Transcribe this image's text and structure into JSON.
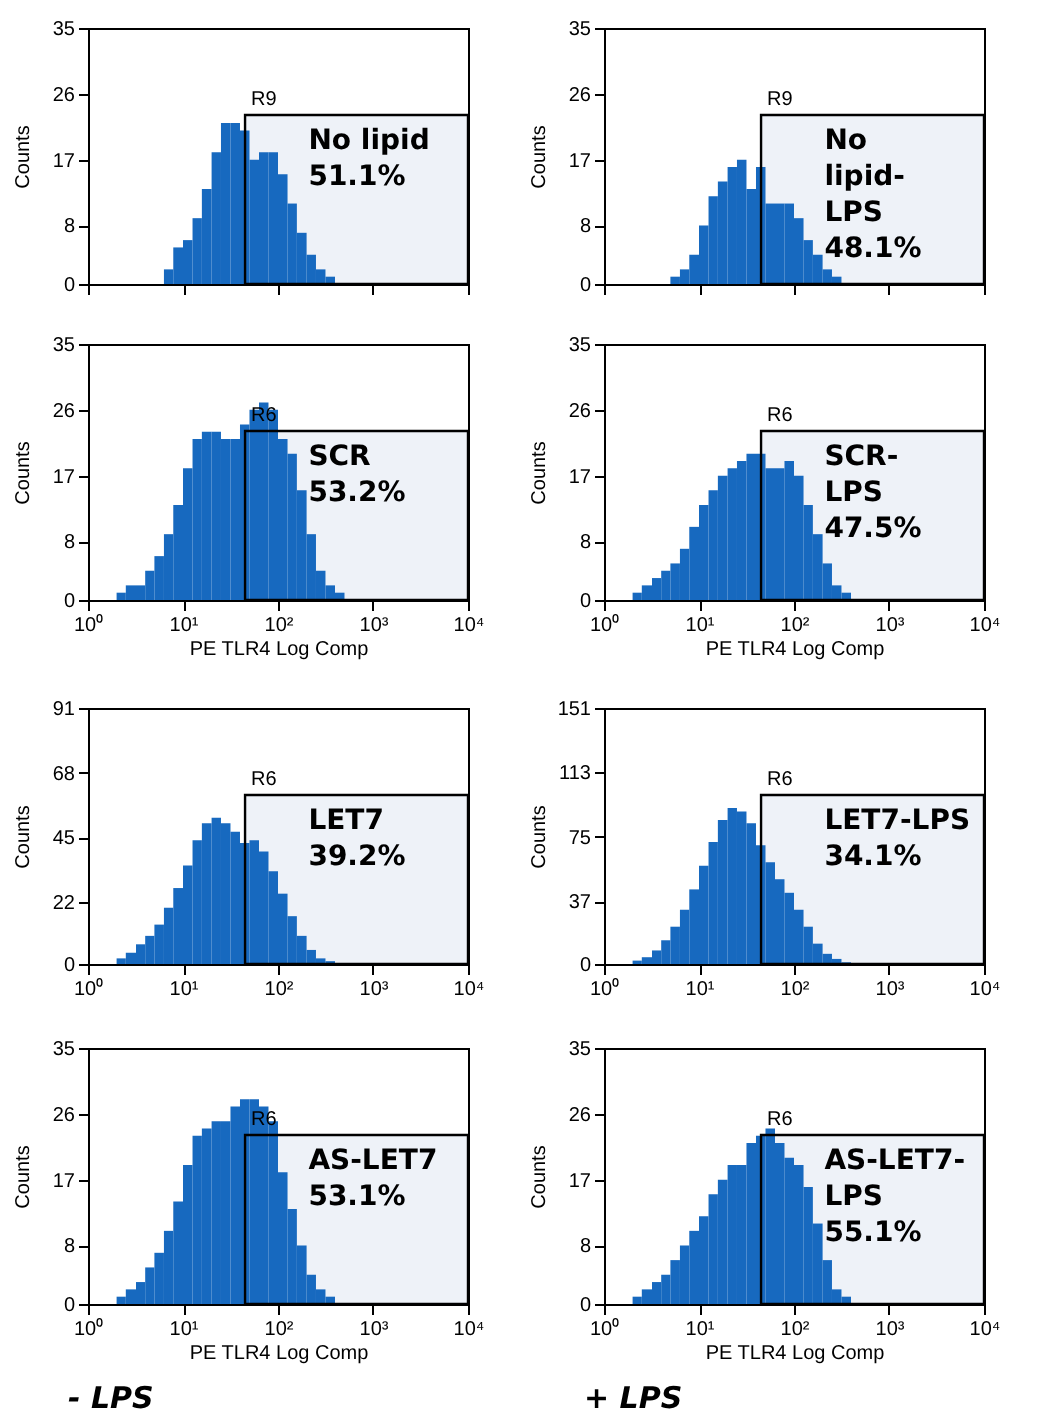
{
  "chart_data": [
    {
      "type": "histogram",
      "ylabel": "Counts",
      "color": "#1769bf",
      "xlim": [
        1,
        10000
      ],
      "ylim": [
        0,
        35
      ],
      "log": "x",
      "grid": false,
      "tick_labels": "y",
      "xticks": [
        {
          "value": 1,
          "label": null
        },
        {
          "value": 10,
          "label": null
        },
        {
          "value": 100,
          "label": null
        },
        {
          "value": 1000,
          "label": null
        },
        {
          "value": 10000,
          "label": null
        }
      ],
      "yticks": [
        0,
        8,
        17,
        26,
        35
      ],
      "bins": [
        6.3,
        7.9,
        10,
        12.6,
        15.8,
        20,
        25.1,
        31.6,
        39.8,
        50.1,
        63.1,
        79.4,
        100,
        126,
        158,
        200,
        251,
        316,
        398
      ],
      "values": [
        2,
        5,
        6,
        9,
        13,
        18,
        22,
        22,
        21,
        17,
        18,
        18,
        15,
        11,
        7,
        4,
        2,
        1
      ],
      "bands": [
        {
          "axis": "x",
          "from": 45,
          "to": 10000,
          "label": "R9"
        }
      ],
      "annotations": [
        "No lipid\n51.1%"
      ]
    },
    {
      "type": "histogram",
      "ylabel": "Counts",
      "color": "#1769bf",
      "xlim": [
        1,
        10000
      ],
      "ylim": [
        0,
        35
      ],
      "log": "x",
      "grid": false,
      "tick_labels": "y",
      "xticks": [
        {
          "value": 1,
          "label": null
        },
        {
          "value": 10,
          "label": null
        },
        {
          "value": 100,
          "label": null
        },
        {
          "value": 1000,
          "label": null
        },
        {
          "value": 10000,
          "label": null
        }
      ],
      "yticks": [
        0,
        8,
        17,
        26,
        35
      ],
      "bins": [
        5,
        6.3,
        7.9,
        10,
        12.6,
        15.8,
        20,
        25.1,
        31.6,
        39.8,
        50.1,
        63.1,
        79.4,
        100,
        126,
        158,
        200,
        251,
        316
      ],
      "values": [
        1,
        2,
        4,
        8,
        12,
        14,
        16,
        17,
        13,
        16,
        11,
        11,
        11,
        9,
        6,
        4,
        2,
        1
      ],
      "bands": [
        {
          "axis": "x",
          "from": 45,
          "to": 10000,
          "label": "R9"
        }
      ],
      "annotations": [
        "No\nlipid-\nLPS\n48.1%"
      ]
    },
    {
      "type": "histogram",
      "xlabel": "PE TLR4 Log Comp",
      "ylabel": "Counts",
      "color": "#1769bf",
      "xlim": [
        1,
        10000
      ],
      "ylim": [
        0,
        35
      ],
      "log": "x",
      "grid": false,
      "xticks": [
        {
          "value": 1,
          "label": "10⁰"
        },
        {
          "value": 10,
          "label": "10¹"
        },
        {
          "value": 100,
          "label": "10²"
        },
        {
          "value": 1000,
          "label": "10³"
        },
        {
          "value": 10000,
          "label": "10⁴"
        }
      ],
      "yticks": [
        0,
        8,
        17,
        26,
        35
      ],
      "bins": [
        2,
        2.5,
        3.2,
        4,
        5,
        6.3,
        7.9,
        10,
        12.6,
        15.8,
        20,
        25.1,
        31.6,
        39.8,
        50.1,
        63.1,
        79.4,
        100,
        126,
        158,
        200,
        251,
        316,
        398,
        501
      ],
      "values": [
        1,
        2,
        2,
        4,
        6,
        9,
        13,
        18,
        22,
        23,
        23,
        22,
        22,
        24,
        26,
        27,
        26,
        22,
        20,
        15,
        9,
        4,
        2,
        1
      ],
      "bands": [
        {
          "axis": "x",
          "from": 45,
          "to": 10000,
          "label": "R6"
        }
      ],
      "annotations": [
        "SCR\n53.2%"
      ]
    },
    {
      "type": "histogram",
      "xlabel": "PE TLR4 Log Comp",
      "ylabel": "Counts",
      "color": "#1769bf",
      "xlim": [
        1,
        10000
      ],
      "ylim": [
        0,
        35
      ],
      "log": "x",
      "grid": false,
      "xticks": [
        {
          "value": 1,
          "label": "10⁰"
        },
        {
          "value": 10,
          "label": "10¹"
        },
        {
          "value": 100,
          "label": "10²"
        },
        {
          "value": 1000,
          "label": "10³"
        },
        {
          "value": 10000,
          "label": "10⁴"
        }
      ],
      "yticks": [
        0,
        8,
        17,
        26,
        35
      ],
      "bins": [
        2,
        2.5,
        3.2,
        4,
        5,
        6.3,
        7.9,
        10,
        12.6,
        15.8,
        20,
        25.1,
        31.6,
        39.8,
        50.1,
        63.1,
        79.4,
        100,
        126,
        158,
        200,
        251,
        316,
        398
      ],
      "values": [
        1,
        2,
        3,
        4,
        5,
        7,
        10,
        13,
        15,
        17,
        18,
        19,
        20,
        20,
        18,
        18,
        19,
        17,
        13,
        9,
        5,
        2,
        1
      ],
      "bands": [
        {
          "axis": "x",
          "from": 45,
          "to": 10000,
          "label": "R6"
        }
      ],
      "annotations": [
        "SCR-\nLPS\n47.5%"
      ]
    },
    {
      "type": "histogram",
      "ylabel": "Counts",
      "color": "#1769bf",
      "xlim": [
        1,
        10000
      ],
      "ylim": [
        0,
        91
      ],
      "log": "x",
      "grid": false,
      "xticks": [
        {
          "value": 1,
          "label": "10⁰"
        },
        {
          "value": 10,
          "label": "10¹"
        },
        {
          "value": 100,
          "label": "10²"
        },
        {
          "value": 1000,
          "label": "10³"
        },
        {
          "value": 10000,
          "label": "10⁴"
        }
      ],
      "yticks": [
        0,
        22,
        45,
        68,
        91
      ],
      "bins": [
        2,
        2.5,
        3.2,
        4,
        5,
        6.3,
        7.9,
        10,
        12.6,
        15.8,
        20,
        25.1,
        31.6,
        39.8,
        50.1,
        63.1,
        79.4,
        100,
        126,
        158,
        200,
        251,
        316,
        398
      ],
      "values": [
        2,
        4,
        7,
        10,
        14,
        20,
        27,
        35,
        44,
        50,
        52,
        50,
        47,
        43,
        44,
        40,
        33,
        25,
        17,
        10,
        5,
        2,
        1
      ],
      "bands": [
        {
          "axis": "x",
          "from": 45,
          "to": 10000,
          "label": "R6"
        }
      ],
      "annotations": [
        "LET7\n39.2%"
      ]
    },
    {
      "type": "histogram",
      "ylabel": "Counts",
      "color": "#1769bf",
      "xlim": [
        1,
        10000
      ],
      "ylim": [
        0,
        151
      ],
      "log": "x",
      "grid": false,
      "xticks": [
        {
          "value": 1,
          "label": "10⁰"
        },
        {
          "value": 10,
          "label": "10¹"
        },
        {
          "value": 100,
          "label": "10²"
        },
        {
          "value": 1000,
          "label": "10³"
        },
        {
          "value": 10000,
          "label": "10⁴"
        }
      ],
      "yticks": [
        0,
        37,
        75,
        113,
        151
      ],
      "bins": [
        2,
        2.5,
        3.2,
        4,
        5,
        6.3,
        7.9,
        10,
        12.6,
        15.8,
        20,
        25.1,
        31.6,
        39.8,
        50.1,
        63.1,
        79.4,
        100,
        126,
        158,
        200,
        251,
        316,
        398
      ],
      "values": [
        2,
        4,
        8,
        14,
        22,
        32,
        44,
        58,
        72,
        85,
        92,
        90,
        83,
        70,
        60,
        50,
        42,
        32,
        22,
        12,
        6,
        3,
        1
      ],
      "bands": [
        {
          "axis": "x",
          "from": 45,
          "to": 10000,
          "label": "R6"
        }
      ],
      "annotations": [
        "LET7-LPS\n34.1%"
      ]
    },
    {
      "type": "histogram",
      "xlabel": "PE TLR4 Log Comp",
      "ylabel": "Counts",
      "color": "#1769bf",
      "xlim": [
        1,
        10000
      ],
      "ylim": [
        0,
        35
      ],
      "log": "x",
      "grid": false,
      "xticks": [
        {
          "value": 1,
          "label": "10⁰"
        },
        {
          "value": 10,
          "label": "10¹"
        },
        {
          "value": 100,
          "label": "10²"
        },
        {
          "value": 1000,
          "label": "10³"
        },
        {
          "value": 10000,
          "label": "10⁴"
        }
      ],
      "yticks": [
        0,
        8,
        17,
        26,
        35
      ],
      "bins": [
        2,
        2.5,
        3.2,
        4,
        5,
        6.3,
        7.9,
        10,
        12.6,
        15.8,
        20,
        25.1,
        31.6,
        39.8,
        50.1,
        63.1,
        79.4,
        100,
        126,
        158,
        200,
        251,
        316,
        398
      ],
      "values": [
        1,
        2,
        3,
        5,
        7,
        10,
        14,
        19,
        23,
        24,
        25,
        25,
        27,
        28,
        28,
        27,
        25,
        18,
        13,
        8,
        4,
        2,
        1
      ],
      "bands": [
        {
          "axis": "x",
          "from": 45,
          "to": 10000,
          "label": "R6"
        }
      ],
      "annotations": [
        "AS-LET7\n53.1%",
        "- LPS"
      ]
    },
    {
      "type": "histogram",
      "xlabel": "PE TLR4 Log Comp",
      "ylabel": "Counts",
      "color": "#1769bf",
      "xlim": [
        1,
        10000
      ],
      "ylim": [
        0,
        35
      ],
      "log": "x",
      "grid": false,
      "xticks": [
        {
          "value": 1,
          "label": "10⁰"
        },
        {
          "value": 10,
          "label": "10¹"
        },
        {
          "value": 100,
          "label": "10²"
        },
        {
          "value": 1000,
          "label": "10³"
        },
        {
          "value": 10000,
          "label": "10⁴"
        }
      ],
      "yticks": [
        0,
        8,
        17,
        26,
        35
      ],
      "bins": [
        2,
        2.5,
        3.2,
        4,
        5,
        6.3,
        7.9,
        10,
        12.6,
        15.8,
        20,
        25.1,
        31.6,
        39.8,
        50.1,
        63.1,
        79.4,
        100,
        126,
        158,
        200,
        251,
        316,
        398
      ],
      "values": [
        1,
        2,
        3,
        4,
        6,
        8,
        10,
        12,
        15,
        17,
        19,
        19,
        22,
        23,
        24,
        22,
        20,
        19,
        16,
        11,
        6,
        2,
        1
      ],
      "bands": [
        {
          "axis": "x",
          "from": 45,
          "to": 10000,
          "label": "R6"
        }
      ],
      "annotations": [
        "AS-LET7-\nLPS\n55.1%",
        "+ LPS"
      ]
    }
  ]
}
